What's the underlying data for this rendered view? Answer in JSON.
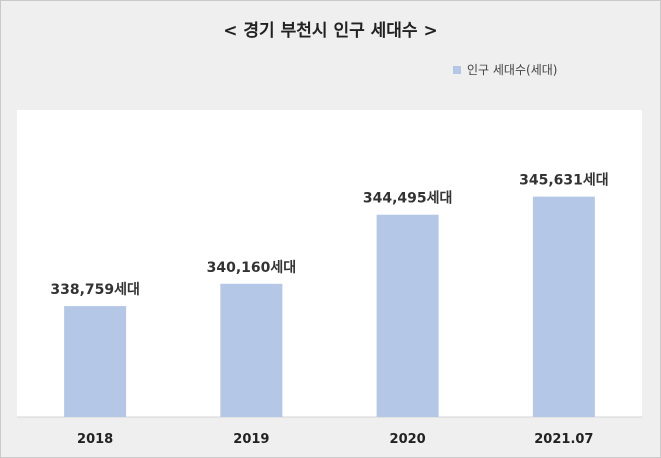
{
  "chart_data": {
    "type": "bar",
    "title": "< 경기 부천시 인구 세대수 >",
    "categories": [
      "2018",
      "2019",
      "2020",
      "2021.07"
    ],
    "series": [
      {
        "name": "인구 세대수(세대)",
        "values": [
          338759,
          340160,
          344495,
          345631
        ]
      }
    ],
    "data_labels": [
      "338,759세대",
      "340,160세대",
      "344,495세대",
      "345,631세대"
    ],
    "legend_position": "top-right",
    "grid": false,
    "bar_color": "#b4c7e7"
  }
}
